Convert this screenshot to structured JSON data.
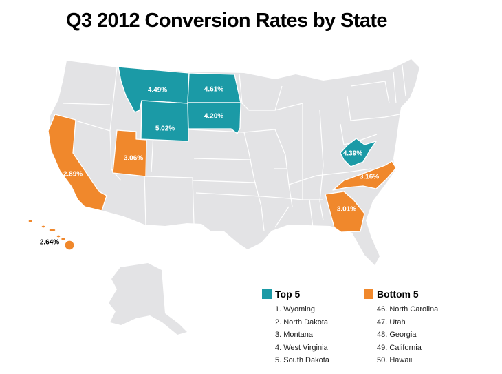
{
  "title": "Q3 2012 Conversion Rates by State",
  "colors": {
    "top": "#1b9aa6",
    "bottom": "#f0882c",
    "base": "#e3e3e5"
  },
  "states": {
    "wyoming": {
      "value": "5.02%",
      "group": "top"
    },
    "north_dakota": {
      "value": "4.61%",
      "group": "top"
    },
    "montana": {
      "value": "4.49%",
      "group": "top"
    },
    "west_virginia": {
      "value": "4.39%",
      "group": "top"
    },
    "south_dakota": {
      "value": "4.20%",
      "group": "top"
    },
    "north_carolina": {
      "value": "3.16%",
      "group": "bottom"
    },
    "utah": {
      "value": "3.06%",
      "group": "bottom"
    },
    "georgia": {
      "value": "3.01%",
      "group": "bottom"
    },
    "california": {
      "value": "2.89%",
      "group": "bottom"
    },
    "hawaii": {
      "value": "2.64%",
      "group": "bottom"
    }
  },
  "legend": {
    "top": {
      "title": "Top 5",
      "items": [
        "1. Wyoming",
        "2. North Dakota",
        "3. Montana",
        "4. West Virginia",
        "5. South Dakota"
      ]
    },
    "bottom": {
      "title": "Bottom 5",
      "items": [
        "46. North Carolina",
        "47. Utah",
        "48. Georgia",
        "49. California",
        "50. Hawaii"
      ]
    }
  }
}
